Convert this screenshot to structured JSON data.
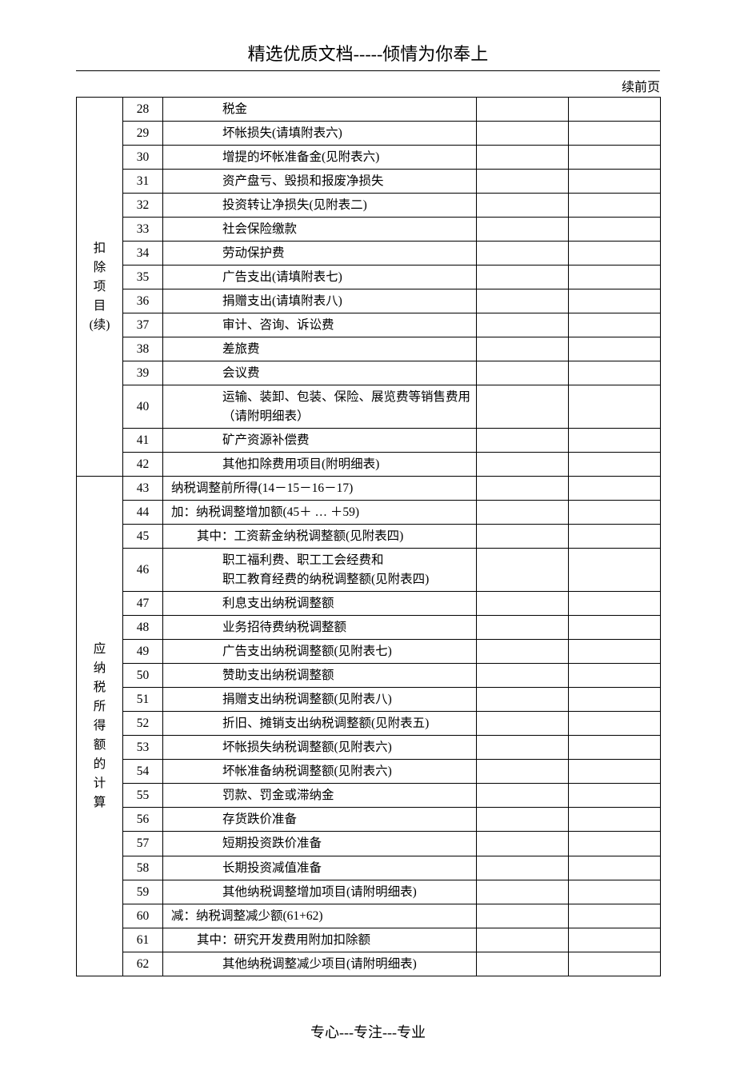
{
  "header": {
    "title": "精选优质文档-----倾情为你奉上",
    "continued_prev": "续前页"
  },
  "footer": {
    "text": "专心---专注---专业"
  },
  "table": {
    "columns": {
      "section_col_width": 58,
      "rownum_col_width": 50,
      "desc_col_width": 392,
      "val1_col_width": 115,
      "val2_col_width": 115
    },
    "sections": [
      {
        "label_chars": [
          "扣",
          "除",
          "项",
          "目",
          "(续)"
        ],
        "rows": [
          {
            "n": "28",
            "desc": "税金",
            "indent": "ind1",
            "v1": "",
            "v2": ""
          },
          {
            "n": "29",
            "desc": "坏帐损失(请填附表六)",
            "indent": "ind1",
            "v1": "",
            "v2": ""
          },
          {
            "n": "30",
            "desc": "增提的坏帐准备金(见附表六)",
            "indent": "ind1",
            "v1": "",
            "v2": ""
          },
          {
            "n": "31",
            "desc": "资产盘亏、毁损和报废净损失",
            "indent": "ind1",
            "v1": "",
            "v2": ""
          },
          {
            "n": "32",
            "desc": "投资转让净损失(见附表二)",
            "indent": "ind1",
            "v1": "",
            "v2": ""
          },
          {
            "n": "33",
            "desc": "社会保险缴款",
            "indent": "ind1",
            "v1": "",
            "v2": ""
          },
          {
            "n": "34",
            "desc": "劳动保护费",
            "indent": "ind1",
            "v1": "",
            "v2": ""
          },
          {
            "n": "35",
            "desc": "广告支出(请填附表七)",
            "indent": "ind1",
            "v1": "",
            "v2": ""
          },
          {
            "n": "36",
            "desc": "捐赠支出(请填附表八)",
            "indent": "ind1",
            "v1": "",
            "v2": ""
          },
          {
            "n": "37",
            "desc": "审计、咨询、诉讼费",
            "indent": "ind1",
            "v1": "",
            "v2": ""
          },
          {
            "n": "38",
            "desc": "差旅费",
            "indent": "ind1",
            "v1": "",
            "v2": ""
          },
          {
            "n": "39",
            "desc": "会议费",
            "indent": "ind1",
            "v1": "",
            "v2": ""
          },
          {
            "n": "40",
            "desc": "运输、装卸、包装、保险、展览费等销售费用（请附明细表）",
            "indent": "ind1",
            "v1": "",
            "v2": ""
          },
          {
            "n": "41",
            "desc": "矿产资源补偿费",
            "indent": "ind1",
            "v1": "",
            "v2": ""
          },
          {
            "n": "42",
            "desc": "其他扣除费用项目(附明细表)",
            "indent": "ind1",
            "v1": "",
            "v2": ""
          }
        ]
      },
      {
        "label_chars": [
          "应",
          "纳",
          "税",
          "所",
          "得",
          "额",
          "的",
          "计",
          "算"
        ],
        "rows": [
          {
            "n": "43",
            "desc": "纳税调整前所得(14－15－16－17)",
            "indent": "ind0a",
            "v1": "",
            "v2": ""
          },
          {
            "n": "44",
            "desc": "加：纳税调整增加额(45＋ … ＋59)",
            "indent": "ind0a",
            "v1": "",
            "v2": ""
          },
          {
            "n": "45",
            "desc": "其中：工资薪金纳税调整额(见附表四)",
            "indent": "ind0b",
            "v1": "",
            "v2": ""
          },
          {
            "n": "46",
            "desc": "职工福利费、职工工会经费和\n职工教育经费的纳税调整额(见附表四)",
            "indent": "ind1",
            "v1": "",
            "v2": ""
          },
          {
            "n": "47",
            "desc": "利息支出纳税调整额",
            "indent": "ind1",
            "v1": "",
            "v2": ""
          },
          {
            "n": "48",
            "desc": "业务招待费纳税调整额",
            "indent": "ind1",
            "v1": "",
            "v2": ""
          },
          {
            "n": "49",
            "desc": "广告支出纳税调整额(见附表七)",
            "indent": "ind1",
            "v1": "",
            "v2": ""
          },
          {
            "n": "50",
            "desc": "赞助支出纳税调整额",
            "indent": "ind1",
            "v1": "",
            "v2": ""
          },
          {
            "n": "51",
            "desc": "捐赠支出纳税调整额(见附表八)",
            "indent": "ind1",
            "v1": "",
            "v2": ""
          },
          {
            "n": "52",
            "desc": "折旧、摊销支出纳税调整额(见附表五)",
            "indent": "ind1",
            "v1": "",
            "v2": ""
          },
          {
            "n": "53",
            "desc": "坏帐损失纳税调整额(见附表六)",
            "indent": "ind1",
            "v1": "",
            "v2": ""
          },
          {
            "n": "54",
            "desc": "坏帐准备纳税调整额(见附表六)",
            "indent": "ind1",
            "v1": "",
            "v2": ""
          },
          {
            "n": "55",
            "desc": "罚款、罚金或滞纳金",
            "indent": "ind1",
            "v1": "",
            "v2": ""
          },
          {
            "n": "56",
            "desc": "存货跌价准备",
            "indent": "ind1",
            "v1": "",
            "v2": ""
          },
          {
            "n": "57",
            "desc": "短期投资跌价准备",
            "indent": "ind1",
            "v1": "",
            "v2": ""
          },
          {
            "n": "58",
            "desc": "长期投资减值准备",
            "indent": "ind1",
            "v1": "",
            "v2": ""
          },
          {
            "n": "59",
            "desc": "其他纳税调整增加项目(请附明细表)",
            "indent": "ind1",
            "v1": "",
            "v2": ""
          },
          {
            "n": "60",
            "desc": "减：纳税调整减少额(61+62)",
            "indent": "ind0a",
            "v1": "",
            "v2": ""
          },
          {
            "n": "61",
            "desc": "其中：研究开发费用附加扣除额",
            "indent": "ind0b",
            "v1": "",
            "v2": ""
          },
          {
            "n": "62",
            "desc": "其他纳税调整减少项目(请附明细表)",
            "indent": "ind1",
            "v1": "",
            "v2": ""
          }
        ]
      }
    ]
  }
}
